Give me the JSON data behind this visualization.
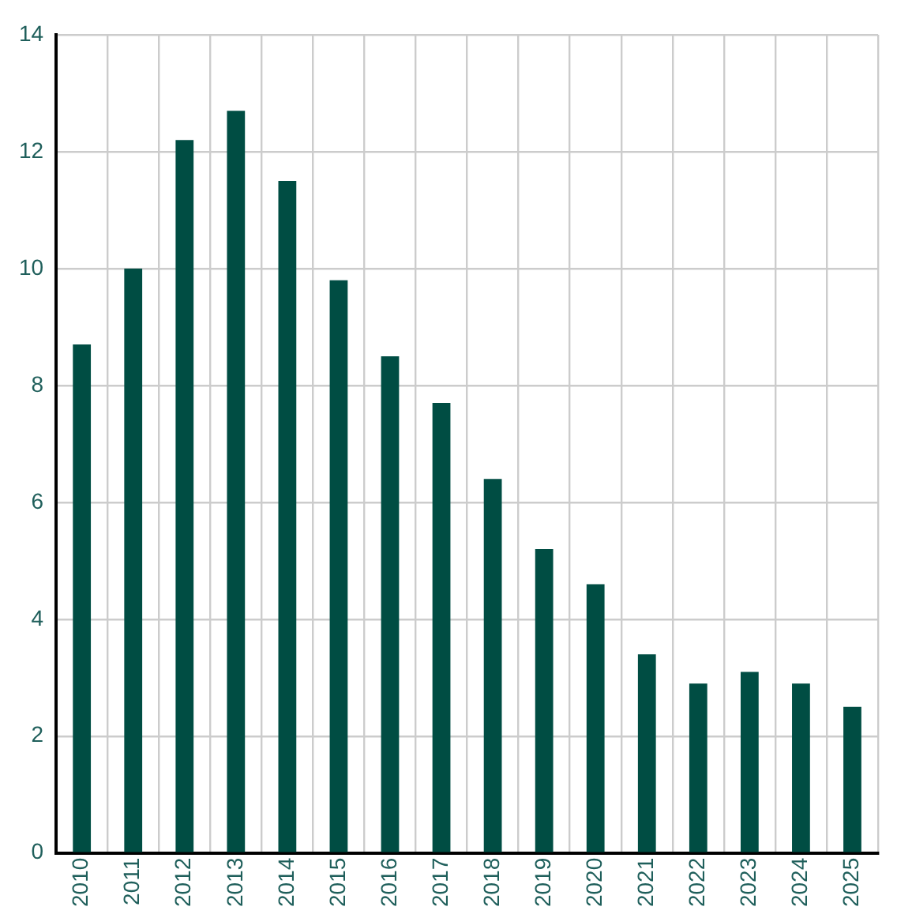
{
  "chart_data": {
    "type": "bar",
    "categories": [
      "2010",
      "2011",
      "2012",
      "2013",
      "2014",
      "2015",
      "2016",
      "2017",
      "2018",
      "2019",
      "2020",
      "2021",
      "2022",
      "2023",
      "2024",
      "2025"
    ],
    "values": [
      8.7,
      10.0,
      12.2,
      12.7,
      11.5,
      9.8,
      8.5,
      7.7,
      6.4,
      5.2,
      4.6,
      3.4,
      2.9,
      3.1,
      2.9,
      2.5
    ],
    "color": "#004d43",
    "ylim": [
      0,
      14
    ],
    "yticks": [
      0,
      2,
      4,
      6,
      8,
      10,
      12,
      14
    ],
    "grid": true
  }
}
